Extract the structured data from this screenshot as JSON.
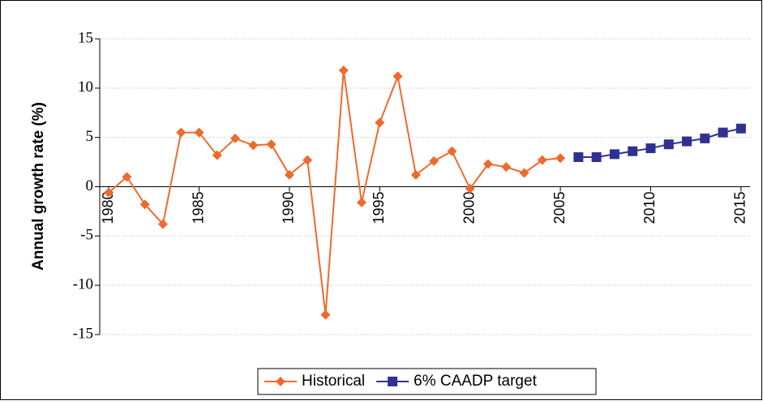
{
  "chart_data": {
    "type": "line",
    "y_label": "Annual growth rate (%)",
    "x": [
      1980,
      1981,
      1982,
      1983,
      1984,
      1985,
      1986,
      1987,
      1988,
      1989,
      1990,
      1991,
      1992,
      1993,
      1994,
      1995,
      1996,
      1997,
      1998,
      1999,
      2000,
      2001,
      2002,
      2003,
      2004,
      2005,
      2006,
      2007,
      2008,
      2009,
      2010,
      2011,
      2012,
      2013,
      2014,
      2015
    ],
    "series": [
      {
        "name": "Historical",
        "color": "#ee6a2d",
        "marker": "diamond",
        "values": [
          -0.6,
          1.0,
          -1.8,
          -3.8,
          5.5,
          5.5,
          3.2,
          4.9,
          4.2,
          4.3,
          1.2,
          2.7,
          -13.0,
          11.8,
          -1.6,
          6.5,
          11.2,
          1.2,
          2.6,
          3.6,
          -0.2,
          2.3,
          2.0,
          1.4,
          2.7,
          2.9,
          null,
          null,
          null,
          null,
          null,
          null,
          null,
          null,
          null,
          null
        ]
      },
      {
        "name": "6% CAADP target",
        "color": "#2e3192",
        "marker": "square",
        "values": [
          null,
          null,
          null,
          null,
          null,
          null,
          null,
          null,
          null,
          null,
          null,
          null,
          null,
          null,
          null,
          null,
          null,
          null,
          null,
          null,
          null,
          null,
          null,
          null,
          null,
          null,
          3.0,
          3.0,
          3.3,
          3.6,
          3.9,
          4.3,
          4.6,
          4.9,
          5.5,
          5.9
        ]
      }
    ],
    "xlim": [
      1979.5,
      2015.5
    ],
    "xticks": [
      1980,
      1985,
      1990,
      1995,
      2000,
      2005,
      2010,
      2015
    ],
    "ylim": [
      -15,
      15
    ],
    "yticks": [
      -15,
      -10,
      -5,
      0,
      5,
      10,
      15
    ],
    "grid": true,
    "legend": "bottom"
  }
}
